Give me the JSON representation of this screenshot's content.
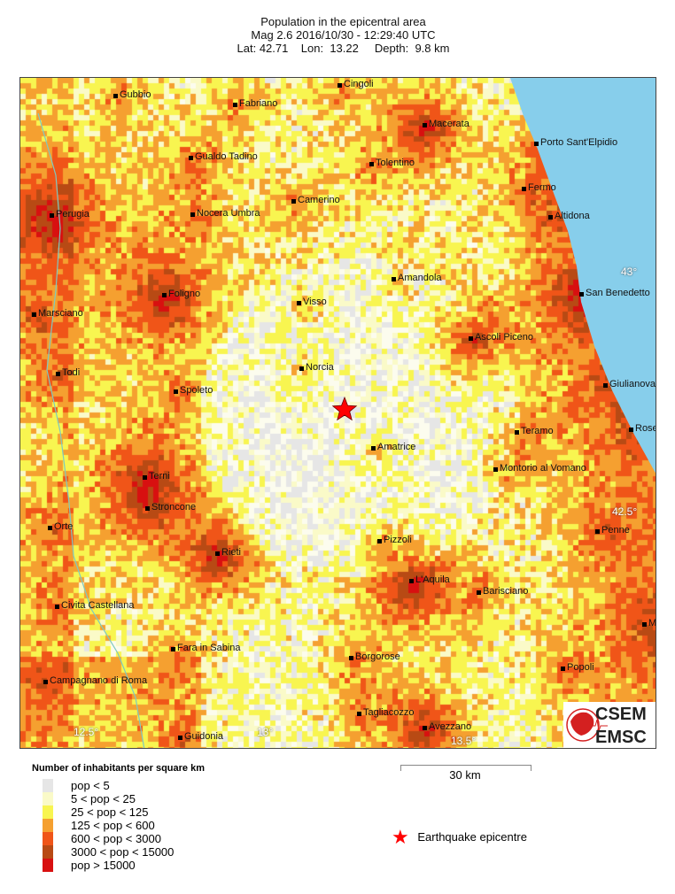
{
  "header": {
    "title": "Population in the epicentral area",
    "line2": "Mag 2.6  2016/10/30 - 12:29:40 UTC",
    "line3": "Lat: 42.71    Lon:  13.22     Depth:  9.8 km"
  },
  "map": {
    "sea_color": "#87ceeb",
    "epicentre_color": "#ff0000",
    "cities": [
      "Gubbio",
      "Fabriano",
      "Cingoli",
      "Macerata",
      "Porto Sant'Elpidio",
      "Gualdo Tadino",
      "Tolentino",
      "Fermo",
      "Camerino",
      "Perugia",
      "Nocera Umbra",
      "Altidona",
      "Amandola",
      "San Benedetto",
      "Foligno",
      "Visso",
      "Marsciano",
      "Ascoli Piceno",
      "Norcia",
      "Todi",
      "Giulianova",
      "Spoleto",
      "Teramo",
      "Rose",
      "Amatrice",
      "Montorio al Vomano",
      "Terni",
      "Stroncone",
      "Orte",
      "Penne",
      "Pizzoli",
      "Rieti",
      "L'Aquila",
      "Barisciano",
      "Civita Castellana",
      "Ma",
      "Fara in Sabina",
      "Borgorose",
      "Popoli",
      "Campagnano di Roma",
      "Tagliacozzo",
      "Avezzano",
      "Guidonia"
    ],
    "grid_labels": [
      "43°",
      "42.5°",
      "12.5°",
      "13°",
      "13.5°"
    ]
  },
  "legend": {
    "title": "Number of inhabitants per square km",
    "items": [
      {
        "label": "pop < 5",
        "color": "#e6e6e6"
      },
      {
        "label": "5 < pop < 25",
        "color": "#fafac8"
      },
      {
        "label": "25 < pop < 125",
        "color": "#f8f550"
      },
      {
        "label": "125 < pop < 600",
        "color": "#f5a030"
      },
      {
        "label": "600 < pop < 3000",
        "color": "#f05518"
      },
      {
        "label": "3000 < pop < 15000",
        "color": "#b84a14"
      },
      {
        "label": "pop > 15000",
        "color": "#d81010"
      }
    ],
    "scale": "30 km",
    "epicentre": "Earthquake epicentre"
  },
  "logo": {
    "top": "CSEM",
    "bottom": "EMSC"
  }
}
